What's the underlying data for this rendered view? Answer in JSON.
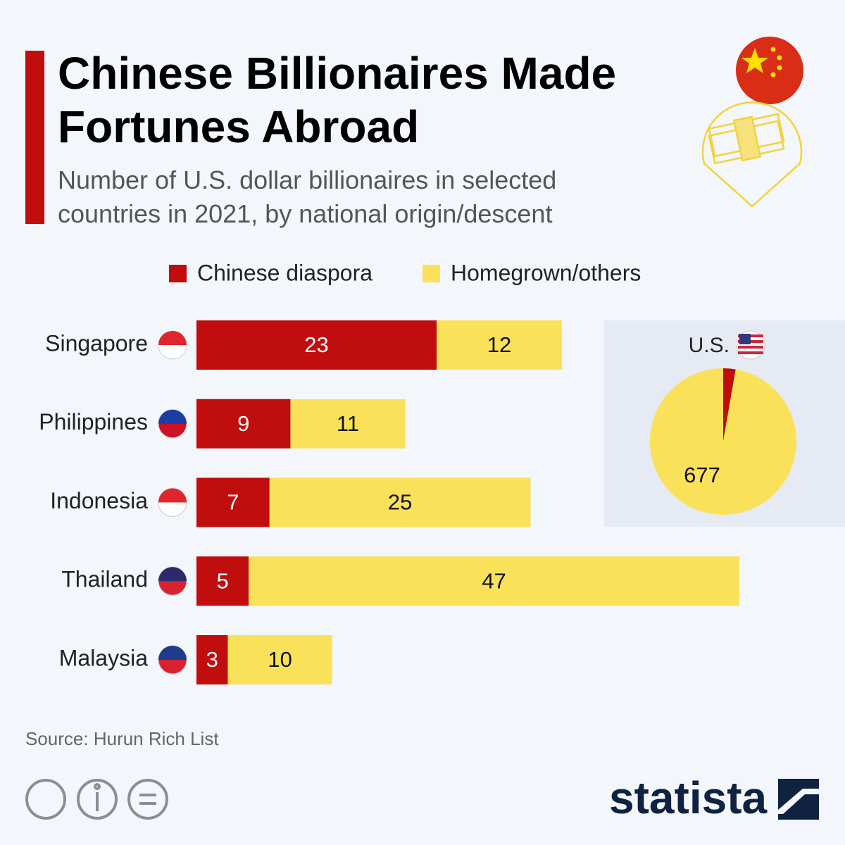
{
  "header": {
    "title": "Chinese Billionaires Made Fortunes Abroad",
    "subtitle": "Number of U.S. dollar billionaires in selected countries in 2021, by national origin/descent"
  },
  "chart_data": [
    {
      "type": "stacked-bar-horizontal",
      "categories": [
        "Singapore",
        "Philippines",
        "Indonesia",
        "Thailand",
        "Malaysia"
      ],
      "series": [
        {
          "name": "Chinese diaspora",
          "color": "#c00d0d",
          "values": [
            23,
            9,
            7,
            5,
            3
          ]
        },
        {
          "name": "Homegrown/others",
          "color": "#fae15a",
          "values": [
            12,
            11,
            25,
            47,
            10
          ]
        }
      ]
    },
    {
      "type": "pie",
      "title": "U.S.",
      "labels": [
        "Chinese diaspora",
        "Homegrown/others"
      ],
      "colors": [
        "#c00d0d",
        "#fae15a"
      ],
      "values": [
        19,
        677
      ]
    }
  ],
  "footer": {
    "source": "Source: Hurun Rich List",
    "brand": "statista"
  }
}
